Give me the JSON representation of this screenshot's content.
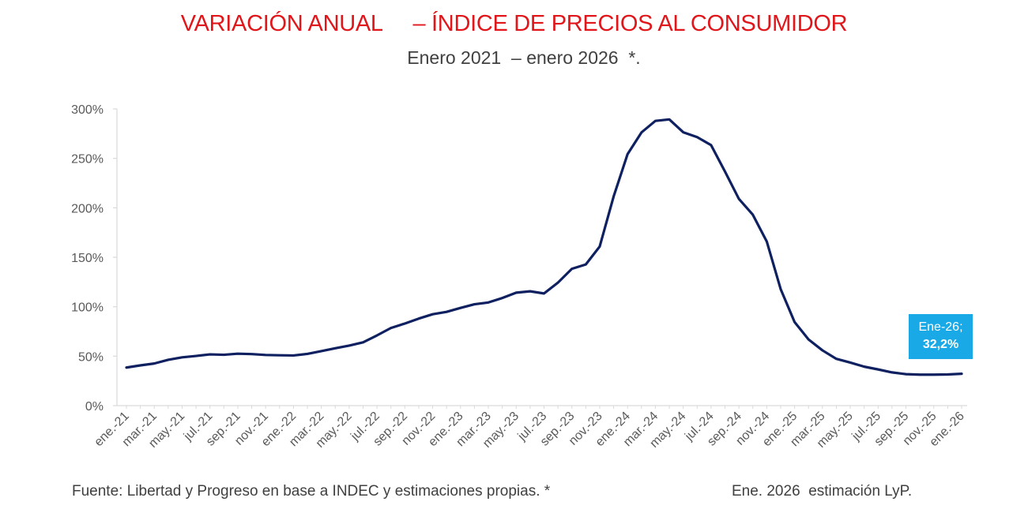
{
  "title": "VARIACIÓN ANUAL     – ÍNDICE DE PRECIOS AL CONSUMIDOR",
  "subtitle": "Enero 2021  – enero 2026  *.",
  "footer": {
    "source": "Fuente: Libertad y Progreso en base a INDEC y estimaciones propias. *",
    "note": "Ene. 2026  estimación LyP."
  },
  "colors": {
    "title": "#e0161b",
    "line": "#0e2060",
    "callout_bg": "#18a9e6",
    "callout_text": "#ffffff"
  },
  "chart_data": {
    "type": "line",
    "y_ticks": [
      "0%",
      "50%",
      "100%",
      "150%",
      "200%",
      "250%",
      "300%"
    ],
    "ylim": [
      0,
      300
    ],
    "x_tick_labels": [
      "ene.-21",
      "mar.-21",
      "may.-21",
      "jul.-21",
      "sep.-21",
      "nov.-21",
      "ene.-22",
      "mar.-22",
      "may.-22",
      "jul.-22",
      "sep.-22",
      "nov.-22",
      "ene.-23",
      "mar.-23",
      "may.-23",
      "jul.-23",
      "sep.-23",
      "nov.-23",
      "ene.-24",
      "mar.-24",
      "may.-24",
      "jul.-24",
      "sep.-24",
      "nov.-24",
      "ene.-25",
      "mar.-25",
      "may.-25",
      "jul.-25",
      "sep.-25",
      "nov.-25",
      "ene.-26"
    ],
    "x": [
      "ene.-21",
      "feb.-21",
      "mar.-21",
      "abr.-21",
      "may.-21",
      "jun.-21",
      "jul.-21",
      "ago.-21",
      "sep.-21",
      "oct.-21",
      "nov.-21",
      "dic.-21",
      "ene.-22",
      "feb.-22",
      "mar.-22",
      "abr.-22",
      "may.-22",
      "jun.-22",
      "jul.-22",
      "ago.-22",
      "sep.-22",
      "oct.-22",
      "nov.-22",
      "dic.-22",
      "ene.-23",
      "feb.-23",
      "mar.-23",
      "abr.-23",
      "may.-23",
      "jun.-23",
      "jul.-23",
      "ago.-23",
      "sep.-23",
      "oct.-23",
      "nov.-23",
      "dic.-23",
      "ene.-24",
      "feb.-24",
      "mar.-24",
      "abr.-24",
      "may.-24",
      "jun.-24",
      "jul.-24",
      "ago.-24",
      "sep.-24",
      "oct.-24",
      "nov.-24",
      "dic.-24",
      "ene.-25",
      "feb.-25",
      "mar.-25",
      "abr.-25",
      "may.-25",
      "jun.-25",
      "jul.-25",
      "ago.-25",
      "sep.-25",
      "oct.-25",
      "nov.-25",
      "dic.-25",
      "ene.-26"
    ],
    "series": [
      {
        "values": [
          38.5,
          40.7,
          42.6,
          46.3,
          48.8,
          50.2,
          51.8,
          51.4,
          52.5,
          52.1,
          51.2,
          50.9,
          50.7,
          52.3,
          55.1,
          58.0,
          60.7,
          64.0,
          71.0,
          78.5,
          83.0,
          88.0,
          92.4,
          94.8,
          98.8,
          102.5,
          104.3,
          108.8,
          114.2,
          115.6,
          113.4,
          124.4,
          138.3,
          142.7,
          160.9,
          211.4,
          254.2,
          276.2,
          287.9,
          289.4,
          276.4,
          271.5,
          263.4,
          236.7,
          209.0,
          193.0,
          166.0,
          117.8,
          84.5,
          66.9,
          55.9,
          47.3,
          43.5,
          39.4,
          36.6,
          33.6,
          31.8,
          31.3,
          31.3,
          31.5,
          32.2
        ]
      }
    ],
    "grid": false,
    "annotation": {
      "label": "Ene-26;",
      "value": "32,2%"
    }
  }
}
